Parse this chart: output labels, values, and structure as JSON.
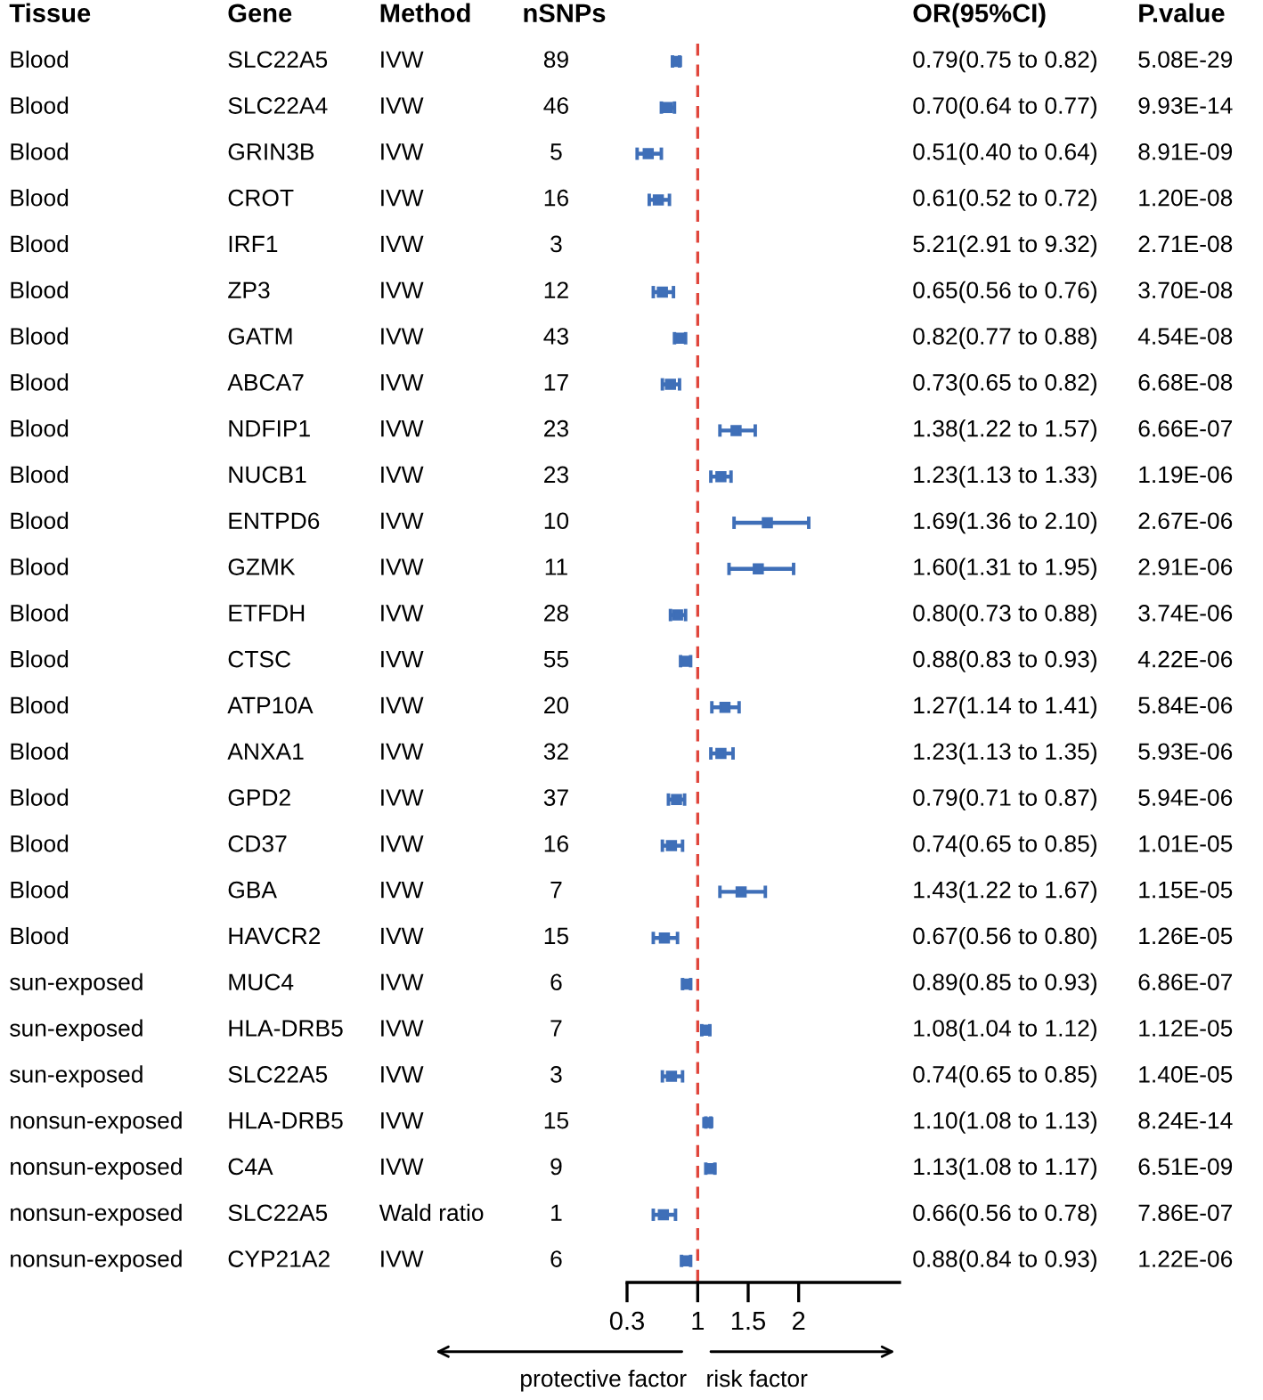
{
  "chart_data": [
    {
      "type": "other",
      "categories": [
        "Tissue",
        "Gene",
        "Method",
        "nSNPs"
      ],
      "cell_labels": [
        [
          "Blood",
          "SLC22A5",
          "IVW",
          "89"
        ],
        [
          "Blood",
          "SLC22A4",
          "IVW",
          "46"
        ],
        [
          "Blood",
          "GRIN3B",
          "IVW",
          "5"
        ],
        [
          "Blood",
          "CROT",
          "IVW",
          "16"
        ],
        [
          "Blood",
          "IRF1",
          "IVW",
          "3"
        ],
        [
          "Blood",
          "ZP3",
          "IVW",
          "12"
        ],
        [
          "Blood",
          "GATM",
          "IVW",
          "43"
        ],
        [
          "Blood",
          "ABCA7",
          "IVW",
          "17"
        ],
        [
          "Blood",
          "NDFIP1",
          "IVW",
          "23"
        ],
        [
          "Blood",
          "NUCB1",
          "IVW",
          "23"
        ],
        [
          "Blood",
          "ENTPD6",
          "IVW",
          "10"
        ],
        [
          "Blood",
          "GZMK",
          "IVW",
          "11"
        ],
        [
          "Blood",
          "ETFDH",
          "IVW",
          "28"
        ],
        [
          "Blood",
          "CTSC",
          "IVW",
          "55"
        ],
        [
          "Blood",
          "ATP10A",
          "IVW",
          "20"
        ],
        [
          "Blood",
          "ANXA1",
          "IVW",
          "32"
        ],
        [
          "Blood",
          "GPD2",
          "IVW",
          "37"
        ],
        [
          "Blood",
          "CD37",
          "IVW",
          "16"
        ],
        [
          "Blood",
          "GBA",
          "IVW",
          "7"
        ],
        [
          "Blood",
          "HAVCR2",
          "IVW",
          "15"
        ],
        [
          "sun-exposed",
          "MUC4",
          "IVW",
          "6"
        ],
        [
          "sun-exposed",
          "HLA-DRB5",
          "IVW",
          "7"
        ],
        [
          "sun-exposed",
          "SLC22A5",
          "IVW",
          "3"
        ],
        [
          "nonsun-exposed",
          "HLA-DRB5",
          "IVW",
          "15"
        ],
        [
          "nonsun-exposed",
          "C4A",
          "IVW",
          "9"
        ],
        [
          "nonsun-exposed",
          "SLC22A5",
          "Wald ratio",
          "1"
        ],
        [
          "nonsun-exposed",
          "CYP21A2",
          "IVW",
          "6"
        ]
      ]
    },
    {
      "type": "scatter",
      "orientation": "horizontal",
      "color": "#3f6fb8",
      "marker": "square",
      "tick_labels": "x",
      "categories": [
        null,
        null,
        null,
        null,
        null,
        null,
        null,
        null,
        null,
        null,
        null,
        null,
        null,
        null,
        null,
        null,
        null,
        null,
        null,
        null,
        null,
        null,
        null,
        null,
        null,
        null,
        null
      ],
      "values": [
        0.79,
        0.7,
        0.51,
        0.61,
        null,
        0.65,
        0.82,
        0.73,
        1.38,
        1.23,
        1.69,
        1.6,
        0.8,
        0.88,
        1.27,
        1.23,
        0.79,
        0.74,
        1.43,
        0.67,
        0.89,
        1.08,
        0.74,
        1.1,
        1.13,
        0.66,
        0.88
      ],
      "errors": [
        [
          0.75,
          0.82
        ],
        [
          0.64,
          0.77
        ],
        [
          0.4,
          0.64
        ],
        [
          0.52,
          0.72
        ],
        null,
        [
          0.56,
          0.76
        ],
        [
          0.77,
          0.88
        ],
        [
          0.65,
          0.82
        ],
        [
          1.22,
          1.57
        ],
        [
          1.13,
          1.33
        ],
        [
          1.36,
          2.1
        ],
        [
          1.31,
          1.95
        ],
        [
          0.73,
          0.88
        ],
        [
          0.83,
          0.93
        ],
        [
          1.14,
          1.41
        ],
        [
          1.13,
          1.35
        ],
        [
          0.71,
          0.87
        ],
        [
          0.65,
          0.85
        ],
        [
          1.22,
          1.67
        ],
        [
          0.56,
          0.8
        ],
        [
          0.85,
          0.93
        ],
        [
          1.04,
          1.12
        ],
        [
          0.65,
          0.85
        ],
        [
          1.08,
          1.13
        ],
        [
          1.08,
          1.17
        ],
        [
          0.56,
          0.78
        ],
        [
          0.84,
          0.93
        ]
      ],
      "xlim": [
        0.3,
        3.0
      ],
      "xticks": [
        0.3,
        1,
        1.5,
        2
      ],
      "ref_lines": [
        {
          "axis": "x",
          "value": 1,
          "color": "#e0463c",
          "line_style": "dashed"
        }
      ],
      "annotations": [
        "protective factor",
        "risk factor"
      ]
    },
    {
      "type": "other",
      "categories": [
        "OR(95%CI)",
        "P.value"
      ],
      "cell_labels": [
        [
          "0.79(0.75 to 0.82)",
          "5.08E-29"
        ],
        [
          "0.70(0.64 to 0.77)",
          "9.93E-14"
        ],
        [
          "0.51(0.40 to 0.64)",
          "8.91E-09"
        ],
        [
          "0.61(0.52 to 0.72)",
          "1.20E-08"
        ],
        [
          "5.21(2.91 to 9.32)",
          "2.71E-08"
        ],
        [
          "0.65(0.56 to 0.76)",
          "3.70E-08"
        ],
        [
          "0.82(0.77 to 0.88)",
          "4.54E-08"
        ],
        [
          "0.73(0.65 to 0.82)",
          "6.68E-08"
        ],
        [
          "1.38(1.22 to 1.57)",
          "6.66E-07"
        ],
        [
          "1.23(1.13 to 1.33)",
          "1.19E-06"
        ],
        [
          "1.69(1.36 to 2.10)",
          "2.67E-06"
        ],
        [
          "1.60(1.31 to 1.95)",
          "2.91E-06"
        ],
        [
          "0.80(0.73 to 0.88)",
          "3.74E-06"
        ],
        [
          "0.88(0.83 to 0.93)",
          "4.22E-06"
        ],
        [
          "1.27(1.14 to 1.41)",
          "5.84E-06"
        ],
        [
          "1.23(1.13 to 1.35)",
          "5.93E-06"
        ],
        [
          "0.79(0.71 to 0.87)",
          "5.94E-06"
        ],
        [
          "0.74(0.65 to 0.85)",
          "1.01E-05"
        ],
        [
          "1.43(1.22 to 1.67)",
          "1.15E-05"
        ],
        [
          "0.67(0.56 to 0.80)",
          "1.26E-05"
        ],
        [
          "0.89(0.85 to 0.93)",
          "6.86E-07"
        ],
        [
          "1.08(1.04 to 1.12)",
          "1.12E-05"
        ],
        [
          "0.74(0.65 to 0.85)",
          "1.40E-05"
        ],
        [
          "1.10(1.08 to 1.13)",
          "8.24E-14"
        ],
        [
          "1.13(1.08 to 1.17)",
          "6.51E-09"
        ],
        [
          "0.66(0.56 to 0.78)",
          "7.86E-07"
        ],
        [
          "0.88(0.84 to 0.93)",
          "1.22E-06"
        ]
      ]
    }
  ]
}
